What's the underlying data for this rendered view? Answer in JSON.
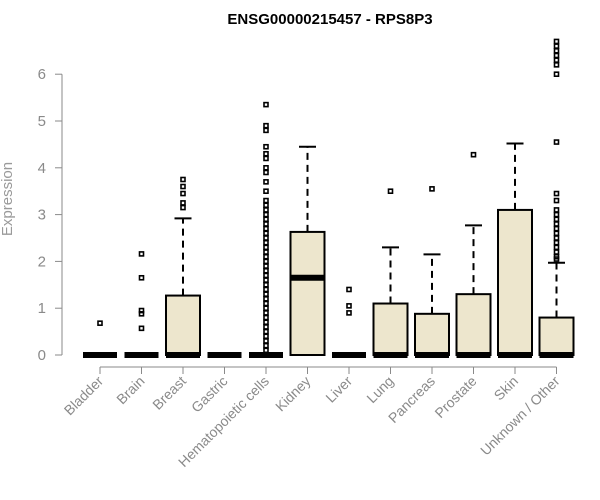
{
  "chart_data": {
    "type": "box",
    "title": "ENSG00000215457 - RPS8P3",
    "xlabel": "",
    "ylabel": "Expression",
    "ylim": [
      0,
      6.2
    ],
    "yticks": [
      "0",
      "1",
      "2",
      "3",
      "4",
      "5",
      "6"
    ],
    "grid": false,
    "colors": {
      "box_fill": "#ede6cd",
      "stroke": "#000000",
      "axis": "#8a8a8a"
    },
    "categories": [
      "Bladder",
      "Brain",
      "Breast",
      "Gastric",
      "Hematopoietic cells",
      "Kidney",
      "Liver",
      "Lung",
      "Pancreas",
      "Prostate",
      "Skin",
      "Unknown / Other"
    ],
    "boxes": [
      {
        "name": "Bladder",
        "q1": 0,
        "median": 0,
        "q3": 0,
        "whisker_low": 0,
        "whisker_high": 0,
        "outliers": [
          0.68
        ]
      },
      {
        "name": "Brain",
        "q1": 0,
        "median": 0,
        "q3": 0,
        "whisker_low": 0,
        "whisker_high": 0,
        "outliers": [
          0.57,
          0.88,
          0.95,
          1.65,
          2.16
        ]
      },
      {
        "name": "Breast",
        "q1": 0,
        "median": 0,
        "q3": 1.27,
        "whisker_low": 0,
        "whisker_high": 2.92,
        "outliers": [
          3.15,
          3.25,
          3.45,
          3.6,
          3.75
        ]
      },
      {
        "name": "Gastric",
        "q1": 0,
        "median": 0,
        "q3": 0,
        "whisker_low": 0,
        "whisker_high": 0,
        "outliers": []
      },
      {
        "name": "Hematopoietic cells",
        "q1": 0,
        "median": 0,
        "q3": 0,
        "whisker_low": 0,
        "whisker_high": 0,
        "outliers": [
          0.1,
          0.2,
          0.3,
          0.4,
          0.5,
          0.6,
          0.7,
          0.8,
          0.9,
          1.0,
          1.1,
          1.2,
          1.3,
          1.4,
          1.5,
          1.6,
          1.7,
          1.8,
          1.9,
          2.0,
          2.1,
          2.2,
          2.3,
          2.4,
          2.5,
          2.6,
          2.7,
          2.8,
          2.9,
          3.0,
          3.1,
          3.2,
          3.3,
          3.5,
          3.7,
          3.9,
          4.0,
          4.2,
          4.3,
          4.45,
          4.8,
          4.9,
          5.35
        ]
      },
      {
        "name": "Kidney",
        "q1": 0,
        "median": 1.65,
        "q3": 2.63,
        "whisker_low": 0,
        "whisker_high": 4.45,
        "outliers": []
      },
      {
        "name": "Liver",
        "q1": 0,
        "median": 0,
        "q3": 0,
        "whisker_low": 0,
        "whisker_high": 0,
        "outliers": [
          0.9,
          1.05,
          1.4
        ]
      },
      {
        "name": "Lung",
        "q1": 0,
        "median": 0,
        "q3": 1.1,
        "whisker_low": 0,
        "whisker_high": 2.3,
        "outliers": [
          3.5
        ]
      },
      {
        "name": "Pancreas",
        "q1": 0,
        "median": 0,
        "q3": 0.88,
        "whisker_low": 0,
        "whisker_high": 2.15,
        "outliers": [
          3.55
        ]
      },
      {
        "name": "Prostate",
        "q1": 0,
        "median": 0,
        "q3": 1.3,
        "whisker_low": 0,
        "whisker_high": 2.77,
        "outliers": [
          4.28
        ]
      },
      {
        "name": "Skin",
        "q1": 0,
        "median": 0,
        "q3": 3.1,
        "whisker_low": 0,
        "whisker_high": 4.52,
        "outliers": []
      },
      {
        "name": "Unknown / Other",
        "q1": 0,
        "median": 0,
        "q3": 0.8,
        "whisker_low": 0,
        "whisker_high": 1.97,
        "outliers": [
          2.05,
          2.1,
          2.2,
          2.3,
          2.4,
          2.5,
          2.6,
          2.7,
          2.8,
          2.9,
          3.0,
          3.1,
          3.3,
          3.45,
          4.55,
          6.0,
          6.2,
          6.3,
          6.4,
          6.5,
          6.6,
          6.7
        ]
      }
    ]
  }
}
